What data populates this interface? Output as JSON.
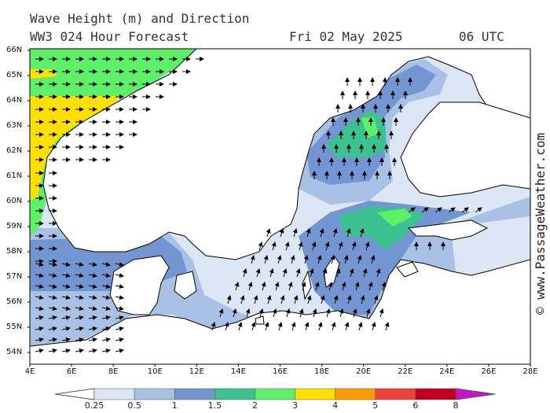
{
  "title": {
    "line1": "Wave Height (m) and Direction",
    "line2": "WW3 024 Hour Forecast",
    "date": "Fri 02 May 2025",
    "time": "06 UTC"
  },
  "credit": "© www.PassageWeather.com",
  "axes": {
    "latitudes": [
      "66N",
      "65N",
      "64N",
      "63N",
      "62N",
      "61N",
      "60N",
      "59N",
      "58N",
      "57N",
      "56N",
      "55N",
      "54N"
    ],
    "longitudes": [
      "4E",
      "6E",
      "8E",
      "10E",
      "12E",
      "14E",
      "16E",
      "18E",
      "20E",
      "22E",
      "24E",
      "26E",
      "28E"
    ]
  },
  "legend": {
    "unit": "m",
    "labels": [
      "0.25",
      "0.5",
      "1",
      "1.5",
      "2",
      "3",
      "4",
      "5",
      "6",
      "8"
    ],
    "colors": [
      "#ffffff",
      "#dde6f4",
      "#a9c1e4",
      "#7396d2",
      "#3cc190",
      "#5ef068",
      "#ffe000",
      "#ff9a00",
      "#f0403a",
      "#c0001c",
      "#cc10cc"
    ]
  },
  "colors": {
    "land": "#ffffff",
    "coast": "#000000",
    "sea_lowest": "#dde6f4"
  }
}
